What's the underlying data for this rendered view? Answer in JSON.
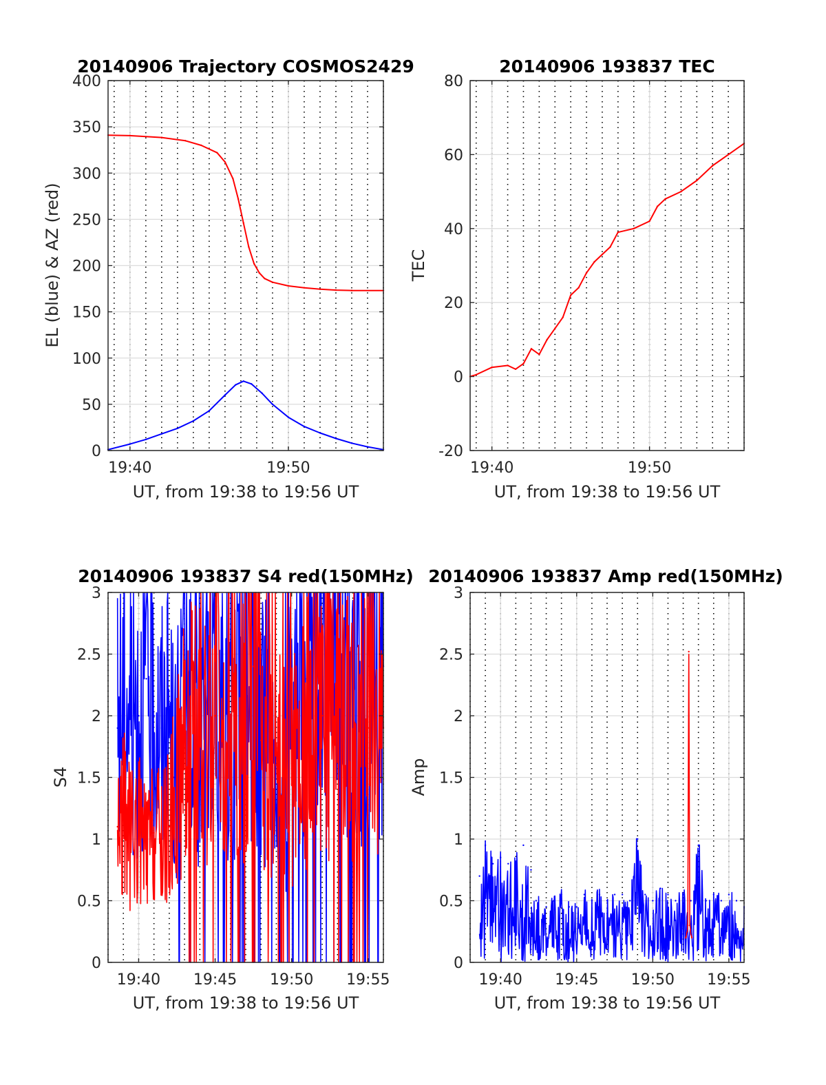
{
  "chart_data": [
    {
      "type": "line",
      "title": "20140906 Trajectory COSMOS2429",
      "xlabel": "UT, from 19:38 to 19:56 UT",
      "ylabel": "EL (blue) & AZ (red)",
      "xlim": [
        "19:38:37",
        "19:56:00"
      ],
      "ylim": [
        0,
        400
      ],
      "yticks": [
        0,
        50,
        100,
        150,
        200,
        250,
        300,
        350,
        400
      ],
      "xticks": [
        "19:40",
        "19:50"
      ],
      "grid": true,
      "series": [
        {
          "color": "#ff0000",
          "x": [
            "19:38:37",
            "19:40:00",
            "19:42:00",
            "19:43:30",
            "19:44:30",
            "19:45:30",
            "19:46:00",
            "19:46:30",
            "19:46:50",
            "19:47:10",
            "19:47:30",
            "19:47:50",
            "19:48:10",
            "19:48:30",
            "19:49:00",
            "19:50:00",
            "19:51:00",
            "19:52:00",
            "19:53:00",
            "19:54:00",
            "19:56:00"
          ],
          "values": [
            341,
            340.5,
            338.5,
            335,
            330,
            322,
            312,
            294,
            272,
            246,
            220,
            202,
            192,
            186,
            182,
            178,
            176,
            174.5,
            173.5,
            173,
            173
          ]
        },
        {
          "color": "#0000ff",
          "x": [
            "19:38:37",
            "19:40:00",
            "19:41:00",
            "19:42:00",
            "19:43:00",
            "19:44:00",
            "19:45:00",
            "19:46:00",
            "19:46:40",
            "19:47:10",
            "19:47:40",
            "19:48:20",
            "19:49:00",
            "19:50:00",
            "19:51:00",
            "19:52:00",
            "19:53:00",
            "19:54:00",
            "19:55:00",
            "19:56:00"
          ],
          "values": [
            1,
            7,
            12,
            18,
            24,
            32,
            43,
            60,
            71,
            75,
            72,
            62,
            50,
            36,
            26,
            19,
            13,
            8,
            4,
            1
          ]
        }
      ]
    },
    {
      "type": "line",
      "title": "20140906 193837 TEC",
      "xlabel": "UT, from 19:38 to 19:56 UT",
      "ylabel": "TEC",
      "xlim": [
        "19:38:37",
        "19:56:00"
      ],
      "ylim": [
        -20,
        80
      ],
      "yticks": [
        -20,
        0,
        20,
        40,
        60,
        80
      ],
      "xticks": [
        "19:40",
        "19:50"
      ],
      "grid": true,
      "series": [
        {
          "color": "#ff0000",
          "x": [
            "19:38:37",
            "19:39:00",
            "19:40:00",
            "19:41:00",
            "19:41:30",
            "19:42:00",
            "19:42:30",
            "19:43:00",
            "19:43:30",
            "19:44:00",
            "19:44:30",
            "19:45:00",
            "19:45:30",
            "19:46:00",
            "19:46:30",
            "19:47:00",
            "19:47:30",
            "19:48:00",
            "19:49:00",
            "19:50:00",
            "19:50:30",
            "19:51:00",
            "19:52:00",
            "19:53:00",
            "19:54:00",
            "19:55:00",
            "19:56:00"
          ],
          "values": [
            0,
            0.5,
            2.5,
            3,
            2,
            3.5,
            7.5,
            6,
            10,
            13,
            16,
            22,
            24,
            28,
            31,
            33,
            35,
            39,
            40,
            42,
            46,
            48,
            50,
            53,
            57,
            60,
            63
          ]
        }
      ]
    },
    {
      "type": "line",
      "title": "20140906 193837 S4 red(150MHz)",
      "xlabel": "UT, from 19:38 to 19:56 UT",
      "ylabel": "S4",
      "xlim": [
        "19:38:00",
        "19:56:00"
      ],
      "ylim": [
        0,
        3
      ],
      "yticks": [
        0,
        0.5,
        1,
        1.5,
        2,
        2.5,
        3
      ],
      "xticks": [
        "19:40",
        "19:45",
        "19:50",
        "19:55"
      ],
      "grid": true,
      "series": [
        {
          "color": "#0000ff",
          "x": [
            "19:38:37",
            "19:39:00",
            "19:39:30",
            "19:40:00",
            "19:40:30",
            "19:41:00",
            "19:41:30",
            "19:42:00",
            "19:42:20",
            "19:43:00",
            "19:44:00",
            "19:45:00",
            "19:46:00",
            "19:47:00",
            "19:48:00",
            "19:49:00",
            "19:49:30",
            "19:50:00",
            "19:51:00",
            "19:52:00",
            "19:53:00",
            "19:54:00",
            "19:55:00",
            "19:56:00"
          ],
          "values": [
            1.9,
            2.2,
            2.1,
            2.0,
            2.3,
            2.0,
            1.9,
            2.0,
            1.5,
            2.2,
            1.8,
            2.4,
            1.6,
            2.6,
            2.0,
            1.7,
            1.0,
            2.1,
            2.3,
            2.4,
            2.5,
            2.3,
            2.4,
            2.4
          ]
        },
        {
          "color": "#ff0000",
          "x": [
            "19:38:37",
            "19:39:00",
            "19:39:30",
            "19:40:00",
            "19:40:30",
            "19:41:00",
            "19:41:30",
            "19:42:00",
            "19:43:00",
            "19:44:00",
            "19:45:00",
            "19:46:00",
            "19:47:00",
            "19:47:30",
            "19:48:00",
            "19:49:00",
            "19:50:00",
            "19:51:00",
            "19:52:00",
            "19:53:00",
            "19:54:00",
            "19:55:00",
            "19:56:00"
          ],
          "values": [
            1.1,
            1.2,
            1.0,
            1.1,
            0.9,
            1.05,
            1.0,
            1.1,
            1.8,
            1.9,
            2.0,
            2.2,
            1.9,
            2.4,
            1.8,
            1.6,
            1.5,
            1.9,
            2.0,
            2.1,
            1.8,
            1.9,
            1.9
          ]
        }
      ]
    },
    {
      "type": "line",
      "title": "20140906 193837 Amp red(150MHz)",
      "xlabel": "UT, from 19:38 to 19:56 UT",
      "ylabel": "Amp",
      "xlim": [
        "19:38:00",
        "19:56:00"
      ],
      "ylim": [
        0,
        3
      ],
      "yticks": [
        0,
        0.5,
        1,
        1.5,
        2,
        2.5,
        3
      ],
      "xticks": [
        "19:40",
        "19:45",
        "19:50",
        "19:55"
      ],
      "grid": true,
      "series": [
        {
          "color": "#0000ff",
          "x": [
            "19:38:37",
            "19:39:00",
            "19:39:30",
            "19:40:00",
            "19:40:30",
            "19:41:00",
            "19:41:30",
            "19:42:00",
            "19:42:20",
            "19:43:00",
            "19:43:30",
            "19:44:00",
            "19:44:30",
            "19:45:00",
            "19:45:30",
            "19:46:00",
            "19:46:30",
            "19:47:00",
            "19:47:30",
            "19:48:00",
            "19:48:30",
            "19:49:00",
            "19:49:30",
            "19:50:00",
            "19:50:30",
            "19:51:00",
            "19:51:30",
            "19:52:00",
            "19:52:30",
            "19:53:00",
            "19:53:30",
            "19:54:00",
            "19:54:30",
            "19:55:00",
            "19:55:30",
            "19:56:00"
          ],
          "values": [
            0.7,
            0.95,
            0.8,
            0.85,
            0.8,
            0.8,
            0.95,
            0.75,
            0.5,
            0.45,
            0.5,
            0.55,
            0.45,
            0.45,
            0.55,
            0.5,
            0.55,
            0.5,
            0.55,
            0.55,
            0.5,
            1.0,
            0.55,
            0.5,
            0.6,
            0.55,
            0.5,
            0.55,
            0.5,
            0.95,
            0.5,
            0.55,
            0.5,
            0.55,
            0.5,
            0.45
          ]
        },
        {
          "color": "#ff0000",
          "x": [
            "19:52:10",
            "19:52:18",
            "19:52:22",
            "19:52:26",
            "19:52:34"
          ],
          "values": [
            0.2,
            0.3,
            2.52,
            0.3,
            0.2
          ]
        }
      ]
    }
  ]
}
